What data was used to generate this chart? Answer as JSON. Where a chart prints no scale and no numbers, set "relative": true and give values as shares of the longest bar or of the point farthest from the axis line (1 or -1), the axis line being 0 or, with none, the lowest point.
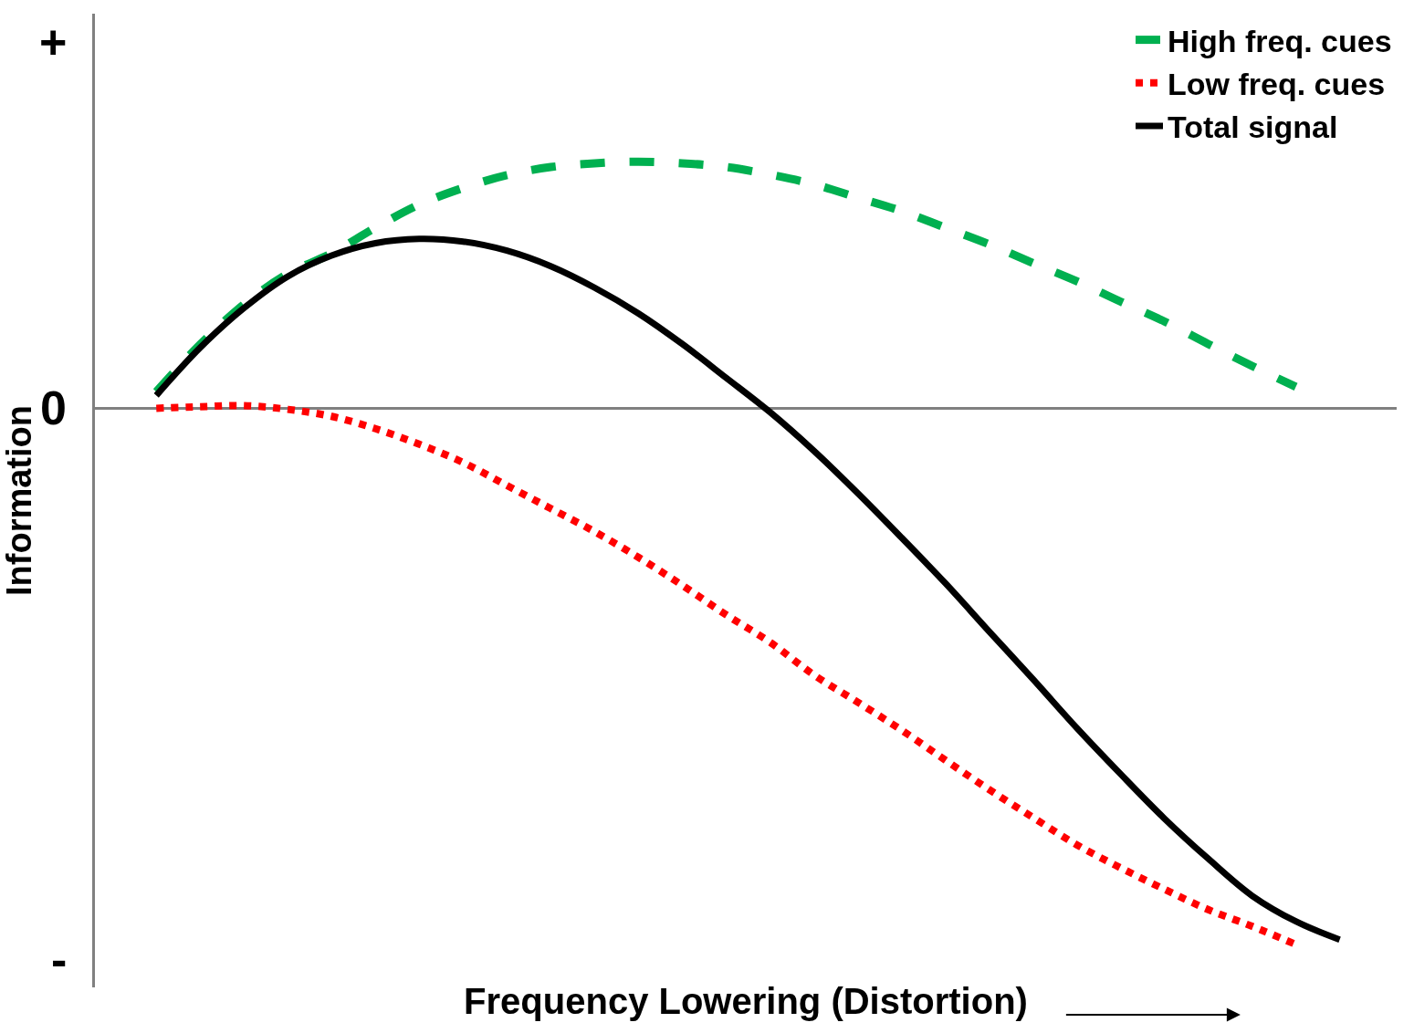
{
  "chart_data": {
    "type": "line",
    "relative": true,
    "xlabel": "Frequency Lowering (Distortion)",
    "ylabel": "Information",
    "annotations": [
      "+",
      "0",
      "-"
    ],
    "categories": [
      null,
      null,
      null,
      null,
      null,
      null,
      null,
      null,
      null,
      null,
      null,
      null,
      null,
      null,
      null,
      null,
      null,
      null,
      null,
      null,
      null,
      null,
      null,
      null,
      null,
      null,
      null,
      null
    ],
    "series": [
      {
        "name": "High freq. cues",
        "color": "#00b050",
        "line_style": "dashed",
        "values": [
          0.031,
          0.119,
          0.194,
          0.251,
          0.289,
          0.337,
          0.38,
          0.411,
          0.435,
          0.45,
          0.457,
          0.46,
          0.457,
          0.45,
          0.436,
          0.418,
          0.393,
          0.368,
          0.337,
          0.306,
          0.271,
          0.237,
          0.199,
          0.162,
          0.12,
          0.079,
          0.04,
          null
        ]
      },
      {
        "name": "Low freq. cues",
        "color": "#ff0000",
        "line_style": "dotted",
        "values": [
          0.0,
          0.003,
          0.005,
          -0.002,
          -0.015,
          -0.038,
          -0.067,
          -0.101,
          -0.144,
          -0.187,
          -0.23,
          -0.278,
          -0.33,
          -0.385,
          -0.436,
          -0.497,
          -0.548,
          -0.6,
          -0.656,
          -0.711,
          -0.763,
          -0.814,
          -0.857,
          -0.897,
          -0.935,
          -0.966,
          -1.0,
          null
        ]
      },
      {
        "name": "Total signal",
        "color": "#000000",
        "line_style": "solid",
        "values": [
          0.024,
          0.113,
          0.187,
          0.246,
          0.285,
          0.308,
          0.316,
          0.311,
          0.294,
          0.265,
          0.225,
          0.177,
          0.12,
          0.057,
          -0.007,
          -0.079,
          -0.158,
          -0.241,
          -0.326,
          -0.416,
          -0.505,
          -0.596,
          -0.682,
          -0.765,
          -0.84,
          -0.909,
          -0.957,
          -0.991
        ]
      }
    ],
    "legend": "top right",
    "marker": "none"
  }
}
